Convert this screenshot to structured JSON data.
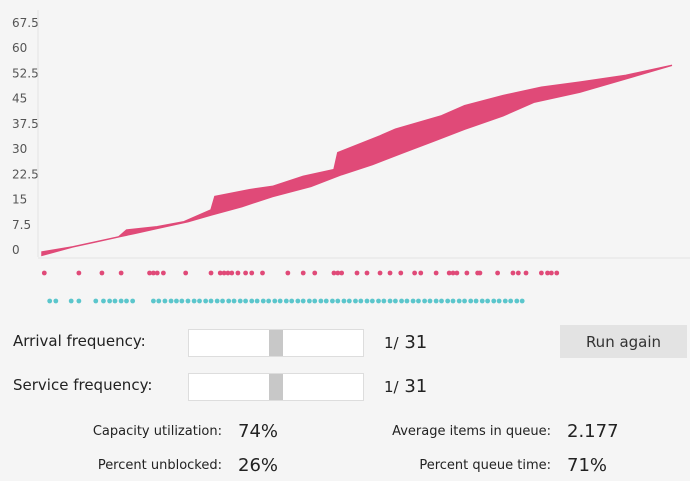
{
  "chart_data": {
    "type": "area",
    "y_ticks": [
      "0",
      "7.5",
      "15",
      "22.5",
      "30",
      "37.5",
      "45",
      "52.5",
      "60",
      "67.5"
    ],
    "ylim": [
      0,
      67.5
    ],
    "series": [
      {
        "values": [
          [
            0,
            0.5
          ],
          [
            40,
            3
          ],
          [
            70,
            4.5
          ],
          [
            100,
            6
          ],
          [
            120,
            7
          ],
          [
            150,
            8.5
          ],
          [
            190,
            10.5
          ],
          [
            220,
            12.5
          ],
          [
            260,
            15
          ],
          [
            300,
            18
          ],
          [
            350,
            21
          ],
          [
            390,
            24.5
          ],
          [
            430,
            27.5
          ],
          [
            470,
            31
          ],
          [
            510,
            34.5
          ],
          [
            550,
            38
          ],
          [
            600,
            42
          ],
          [
            640,
            46
          ],
          [
            700,
            49
          ],
          [
            760,
            53
          ],
          [
            820,
            57
          ]
        ]
      },
      {
        "values": [
          [
            0,
            1.5
          ],
          [
            40,
            3
          ],
          [
            70,
            4.5
          ],
          [
            100,
            6
          ],
          [
            110,
            8
          ],
          [
            150,
            9
          ],
          [
            185,
            10.5
          ],
          [
            220,
            14
          ],
          [
            225,
            18
          ],
          [
            270,
            20
          ],
          [
            300,
            21
          ],
          [
            340,
            24
          ],
          [
            380,
            26
          ],
          [
            385,
            31
          ],
          [
            440,
            36
          ],
          [
            460,
            38
          ],
          [
            520,
            42
          ],
          [
            550,
            45
          ],
          [
            600,
            48
          ],
          [
            650,
            50.5
          ],
          [
            700,
            52
          ],
          [
            760,
            54
          ],
          [
            820,
            57
          ]
        ]
      }
    ],
    "colors": {
      "area": "#e04a78",
      "arrival_dot": "#e04a78",
      "service_dot": "#5bc6cc"
    },
    "arrivals": [
      3,
      48,
      78,
      103,
      140,
      145,
      150,
      158,
      187,
      220,
      232,
      237,
      242,
      247,
      255,
      265,
      273,
      287,
      320,
      340,
      355,
      380,
      385,
      390,
      410,
      423,
      440,
      453,
      467,
      485,
      493,
      513,
      530,
      535,
      540,
      553,
      567,
      570,
      593,
      613,
      620,
      630,
      650,
      658,
      663,
      670
    ],
    "services": [
      10,
      18,
      38,
      48,
      70,
      80,
      88,
      95,
      103,
      110,
      118,
      145,
      152,
      160,
      168,
      175,
      182,
      190,
      198,
      205,
      213,
      220,
      228,
      235,
      243,
      250,
      258,
      265,
      273,
      280,
      288,
      295,
      303,
      310,
      318,
      325,
      333,
      340,
      348,
      355,
      363,
      370,
      378,
      385,
      393,
      400,
      408,
      415,
      423,
      430,
      438,
      445,
      453,
      460,
      468,
      475,
      483,
      490,
      498,
      505,
      513,
      520,
      528,
      535,
      543,
      550,
      558,
      565,
      573,
      580,
      588,
      595,
      603,
      610,
      618,
      625
    ]
  },
  "controls": {
    "arrival_label": "Arrival frequency:",
    "service_label": "Service frequency:",
    "arrival_prefix": "1/",
    "arrival_value": "31",
    "service_prefix": "1/",
    "service_value": "31",
    "run_label": "Run again",
    "arrival_slider_level": 0.5,
    "service_slider_level": 0.5
  },
  "stats": {
    "capacity_label": "Capacity utilization:",
    "capacity_value": "74%",
    "unblocked_label": "Percent unblocked:",
    "unblocked_value": "26%",
    "avg_items_label": "Average items in queue:",
    "avg_items_value": "2.177",
    "queue_time_label": "Percent queue time:",
    "queue_time_value": "71%"
  }
}
